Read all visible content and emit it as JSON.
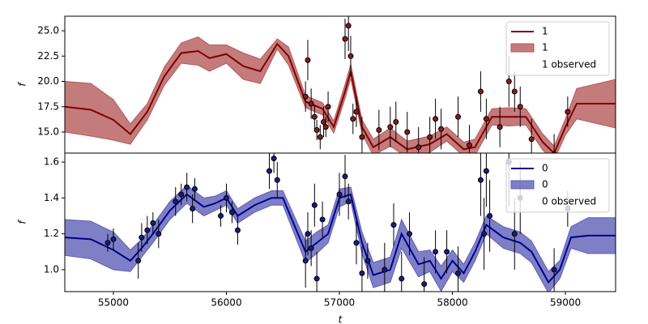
{
  "chart_data": [
    {
      "type": "line",
      "ylabel": "f",
      "legend": "upper right",
      "xlim": [
        54570,
        59444
      ],
      "ylim": [
        12.92,
        26.44
      ],
      "yticks": [
        {
          "value": 15,
          "label": "15.0"
        },
        17.5,
        {
          "value": 20,
          "label": "20.0"
        },
        22.5,
        {
          "value": 25,
          "label": "25.0"
        }
      ],
      "x": [
        54570,
        54800,
        55000,
        55150,
        55300,
        55450,
        55600,
        55750,
        55850,
        56000,
        56150,
        56300,
        56450,
        56550,
        56700,
        56850,
        56950,
        57050,
        57100,
        57200,
        57300,
        57450,
        57600,
        57800,
        57950,
        58100,
        58200,
        58350,
        58500,
        58650,
        58800,
        58900,
        59000,
        59100,
        59444
      ],
      "series": [
        {
          "name": "1",
          "color": "#800000",
          "values": [
            17.5,
            17.2,
            16.2,
            14.8,
            17.0,
            20.5,
            22.8,
            23.0,
            22.3,
            22.7,
            21.5,
            21.0,
            23.7,
            22.5,
            18.0,
            17.3,
            15.5,
            19.0,
            21.0,
            15.5,
            13.5,
            14.5,
            13.3,
            13.8,
            14.8,
            13.3,
            13.5,
            16.5,
            16.5,
            16.5,
            14.0,
            12.9,
            15.5,
            17.8,
            17.8
          ]
        }
      ],
      "band": {
        "name": "1",
        "color": "#b55a5a",
        "lower": [
          15.0,
          14.6,
          14.2,
          13.8,
          16.2,
          19.6,
          21.8,
          21.6,
          21.0,
          21.8,
          20.2,
          19.8,
          23.2,
          21.6,
          17.4,
          16.7,
          14.9,
          18.3,
          20.3,
          14.8,
          12.7,
          13.6,
          12.5,
          13.0,
          14.1,
          12.6,
          12.7,
          15.7,
          15.6,
          15.7,
          13.2,
          12.2,
          14.7,
          16.3,
          15.4
        ],
        "upper": [
          20.0,
          19.8,
          18.2,
          15.8,
          17.8,
          21.4,
          23.8,
          24.4,
          23.6,
          23.6,
          22.8,
          22.2,
          24.2,
          23.4,
          18.6,
          17.9,
          16.1,
          19.7,
          21.7,
          16.2,
          14.3,
          15.4,
          14.1,
          14.6,
          15.5,
          14.0,
          14.3,
          17.3,
          17.4,
          17.3,
          14.8,
          13.6,
          16.3,
          19.3,
          20.2
        ]
      },
      "observed": {
        "name": "1 observed",
        "color": "#8b1a1a",
        "x": [
          56700,
          56720,
          56750,
          56780,
          56800,
          56830,
          56860,
          56880,
          56900,
          57050,
          57080,
          57100,
          57120,
          57150,
          57200,
          57350,
          57450,
          57500,
          57600,
          57700,
          57800,
          57850,
          57900,
          58050,
          58150,
          58250,
          58300,
          58420,
          58500,
          58550,
          58600,
          58700,
          58900,
          59020
        ],
        "values": [
          18.5,
          22.1,
          17.8,
          16.5,
          15.2,
          14.5,
          16.0,
          15.5,
          17.5,
          24.2,
          25.5,
          22.5,
          16.3,
          17.0,
          14.5,
          15.2,
          15.5,
          16.0,
          15.0,
          13.5,
          14.5,
          16.3,
          15.3,
          16.5,
          13.7,
          19.0,
          16.3,
          15.5,
          20.0,
          19.0,
          17.5,
          14.3,
          12.8,
          17.0
        ],
        "errors": [
          1.5,
          2,
          1.5,
          1.2,
          1,
          1.2,
          1.5,
          1,
          1.5,
          2,
          2.5,
          2,
          1.5,
          1.5,
          2,
          2,
          2,
          2,
          2,
          2,
          2,
          2,
          2,
          2,
          2,
          2,
          2,
          2,
          2.5,
          2,
          2,
          2,
          2,
          1.5
        ]
      }
    },
    {
      "type": "line",
      "ylabel": "f",
      "xlabel": "t",
      "legend": "upper right",
      "xlim": [
        54570,
        59444
      ],
      "ylim": [
        0.878,
        1.65
      ],
      "xticks": [
        55000,
        56000,
        57000,
        58000,
        59000
      ],
      "yticks": [
        {
          "value": 1,
          "label": "1.0"
        },
        1.2,
        1.4,
        1.6
      ],
      "x": [
        54570,
        54800,
        55000,
        55150,
        55250,
        55350,
        55500,
        55650,
        55800,
        55900,
        56000,
        56100,
        56250,
        56400,
        56500,
        56600,
        56700,
        56800,
        56900,
        57000,
        57100,
        57200,
        57300,
        57450,
        57550,
        57700,
        57800,
        57900,
        58000,
        58100,
        58200,
        58300,
        58450,
        58600,
        58700,
        58850,
        58950,
        59050,
        59200,
        59444
      ],
      "series": [
        {
          "name": "0",
          "color": "#00008b",
          "values": [
            1.18,
            1.17,
            1.11,
            1.05,
            1.12,
            1.2,
            1.33,
            1.42,
            1.35,
            1.37,
            1.4,
            1.3,
            1.36,
            1.4,
            1.4,
            1.25,
            1.1,
            1.15,
            1.2,
            1.4,
            1.42,
            1.15,
            0.97,
            1.0,
            1.2,
            1.03,
            1.05,
            0.95,
            1.05,
            0.98,
            1.1,
            1.25,
            1.18,
            1.15,
            1.1,
            0.93,
            1.0,
            1.18,
            1.19,
            1.19
          ]
        }
      ],
      "band": {
        "name": "0",
        "color": "#5f5fb8",
        "lower": [
          1.08,
          1.06,
          1.0,
          0.99,
          1.07,
          1.15,
          1.28,
          1.37,
          1.3,
          1.33,
          1.36,
          1.26,
          1.32,
          1.36,
          1.36,
          1.2,
          1.04,
          1.09,
          1.15,
          1.35,
          1.38,
          1.09,
          0.9,
          0.93,
          1.12,
          0.96,
          0.99,
          0.88,
          0.99,
          0.93,
          1.05,
          1.2,
          1.12,
          1.09,
          1.04,
          0.87,
          0.95,
          1.12,
          1.09,
          1.09
        ],
        "upper": [
          1.28,
          1.27,
          1.21,
          1.11,
          1.17,
          1.25,
          1.38,
          1.47,
          1.4,
          1.41,
          1.44,
          1.34,
          1.4,
          1.44,
          1.44,
          1.3,
          1.16,
          1.21,
          1.25,
          1.45,
          1.46,
          1.21,
          1.04,
          1.07,
          1.28,
          1.1,
          1.11,
          1.02,
          1.11,
          1.03,
          1.15,
          1.3,
          1.24,
          1.21,
          1.16,
          0.99,
          1.05,
          1.24,
          1.29,
          1.29
        ]
      },
      "observed": {
        "name": "0 observed",
        "color": "#1a1a8b",
        "x": [
          54950,
          55000,
          55220,
          55250,
          55300,
          55350,
          55400,
          55550,
          55600,
          55650,
          55700,
          55720,
          55950,
          56000,
          56050,
          56100,
          56380,
          56420,
          56450,
          56700,
          56720,
          56750,
          56780,
          56800,
          56850,
          57000,
          57050,
          57080,
          57150,
          57200,
          57250,
          57400,
          57480,
          57550,
          57620,
          57750,
          57850,
          57950,
          58050,
          58250,
          58280,
          58300,
          58330,
          58500,
          58550,
          58600,
          58900,
          59020
        ],
        "values": [
          1.15,
          1.17,
          1.05,
          1.18,
          1.22,
          1.26,
          1.2,
          1.38,
          1.42,
          1.46,
          1.34,
          1.45,
          1.3,
          1.4,
          1.32,
          1.22,
          1.55,
          1.62,
          1.5,
          1.05,
          1.2,
          1.12,
          1.36,
          0.95,
          1.28,
          1.42,
          1.52,
          1.38,
          1.15,
          0.98,
          1.05,
          1.0,
          1.25,
          0.95,
          1.2,
          0.92,
          1.1,
          1.1,
          0.98,
          1.5,
          1.2,
          1.55,
          1.3,
          1.6,
          1.2,
          1.4,
          1.0,
          1.34
        ],
        "errors": [
          0.05,
          0.06,
          0.1,
          0.08,
          0.08,
          0.06,
          0.08,
          0.08,
          0.06,
          0.08,
          0.08,
          0.06,
          0.06,
          0.08,
          0.06,
          0.08,
          0.1,
          0.08,
          0.1,
          0.15,
          0.12,
          0.1,
          0.12,
          0.15,
          0.1,
          0.12,
          0.12,
          0.1,
          0.12,
          0.15,
          0.1,
          0.15,
          0.12,
          0.15,
          0.12,
          0.15,
          0.12,
          0.12,
          0.15,
          0.2,
          0.2,
          0.2,
          0.2,
          0.25,
          0.2,
          0.2,
          0.12,
          0.1
        ]
      }
    }
  ]
}
